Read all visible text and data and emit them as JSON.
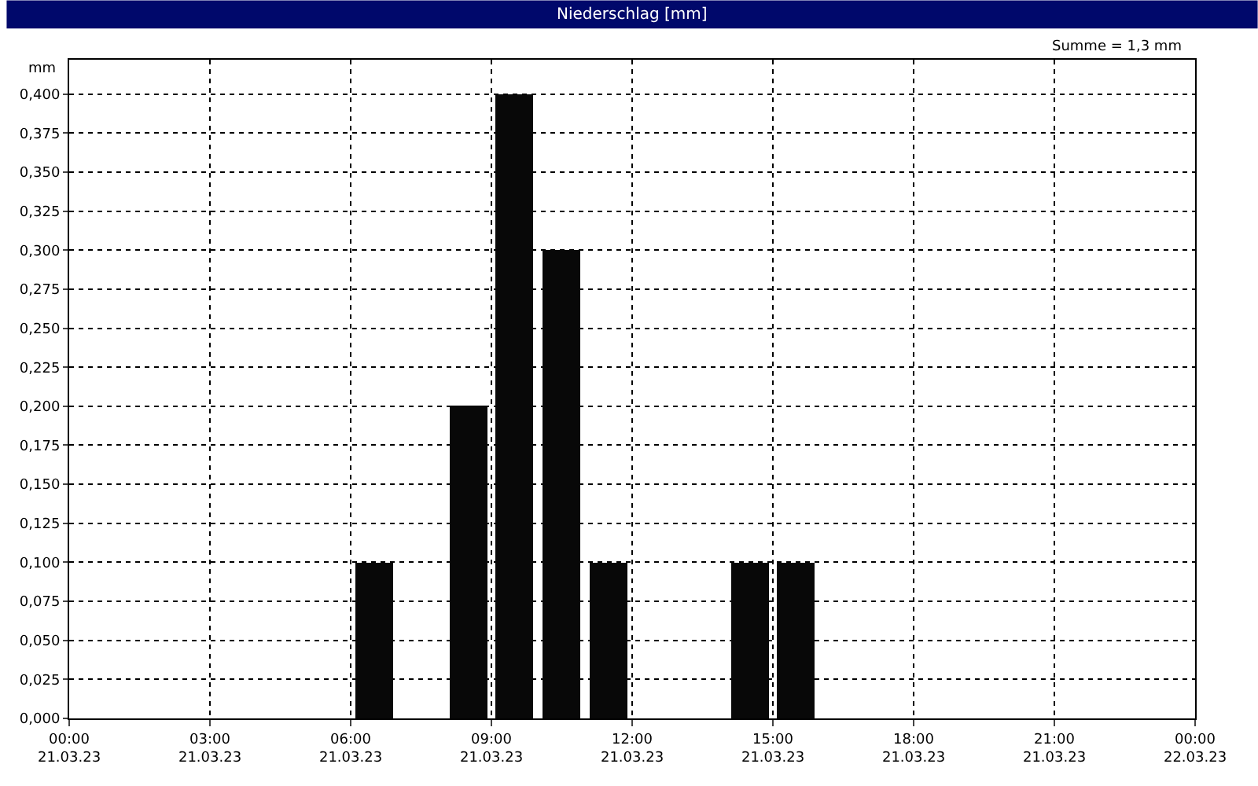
{
  "chart_data": {
    "type": "bar",
    "title": "Niederschlag [mm]",
    "ylabel": "mm",
    "annotations": [
      "Summe = 1,3 mm"
    ],
    "x": [
      "--03-21T06:30",
      "--03-21T08:30",
      "--03-21T09:30",
      "--03-21T10:30",
      "--03-21T11:30",
      "--03-21T14:30",
      "--03-21T15:30"
    ],
    "values": [
      0.1,
      0.2,
      0.4,
      0.3,
      0.1,
      0.1,
      0.1
    ],
    "color": "#080808",
    "xlim": [
      "--03-21T00:00",
      "--03-22T00:00"
    ],
    "xticks": [
      {
        "value": "--03-21T00:00",
        "label": "00:00\n21.03.23"
      },
      {
        "value": "--03-21T03:00",
        "label": "03:00\n21.03.23"
      },
      {
        "value": "--03-21T06:00",
        "label": "06:00\n21.03.23"
      },
      {
        "value": "--03-21T09:00",
        "label": "09:00\n21.03.23"
      },
      {
        "value": "--03-21T12:00",
        "label": "12:00\n21.03.23"
      },
      {
        "value": "--03-21T15:00",
        "label": "15:00\n21.03.23"
      },
      {
        "value": "--03-21T18:00",
        "label": "18:00\n21.03.23"
      },
      {
        "value": "--03-21T21:00",
        "label": "21:00\n21.03.23"
      },
      {
        "value": "--03-22T00:00",
        "label": "00:00\n22.03.23"
      }
    ],
    "ylim": [
      0,
      0.422
    ],
    "yticks": [
      {
        "value": 0,
        "label": "0,000"
      },
      {
        "value": 0.025,
        "label": "0,025"
      },
      {
        "value": 0.05,
        "label": "0,050"
      },
      {
        "value": 0.075,
        "label": "0,075"
      },
      {
        "value": 0.1,
        "label": "0,100"
      },
      {
        "value": 0.125,
        "label": "0,125"
      },
      {
        "value": 0.15,
        "label": "0,150"
      },
      {
        "value": 0.175,
        "label": "0,175"
      },
      {
        "value": 0.2,
        "label": "0,200"
      },
      {
        "value": 0.225,
        "label": "0,225"
      },
      {
        "value": 0.25,
        "label": "0,250"
      },
      {
        "value": 0.275,
        "label": "0,275"
      },
      {
        "value": 0.3,
        "label": "0,300"
      },
      {
        "value": 0.325,
        "label": "0,325"
      },
      {
        "value": 0.35,
        "label": "0,350"
      },
      {
        "value": 0.375,
        "label": "0,375"
      },
      {
        "value": 0.4,
        "label": "0,400"
      }
    ],
    "grid": true,
    "line_style": "dashed",
    "legend": false
  }
}
